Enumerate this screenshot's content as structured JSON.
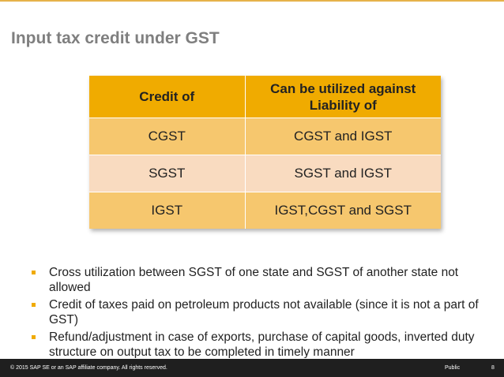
{
  "slide": {
    "title": "Input tax credit under GST"
  },
  "table": {
    "headers": [
      "Credit of",
      "Can be utilized against Liability of"
    ],
    "rows": [
      [
        "CGST",
        "CGST and IGST"
      ],
      [
        "SGST",
        "SGST and IGST"
      ],
      [
        "IGST",
        "IGST,CGST and SGST"
      ]
    ]
  },
  "bullets": [
    "Cross utilization between SGST of one state and SGST of another state not allowed",
    "Credit of taxes paid on petroleum products not available (since it is not a part of GST)",
    "Refund/adjustment in case of exports, purchase of capital goods, inverted duty structure on output tax to be completed in timely manner"
  ],
  "footer": {
    "copyright": "© 2015 SAP SE or an SAP affiliate company. All rights reserved.",
    "classification": "Public",
    "page_number": "8"
  },
  "colors": {
    "accent": "#f0ab00",
    "row_odd": "#f6c76e",
    "row_even": "#f9dbc0",
    "title": "#7f7f7f"
  }
}
